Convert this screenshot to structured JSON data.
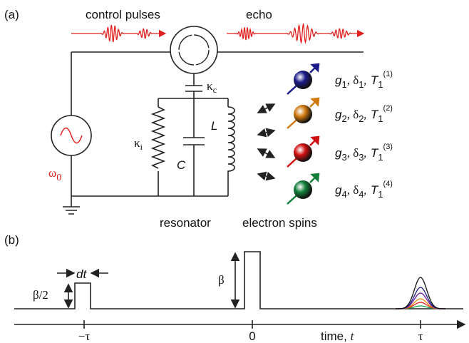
{
  "panel_a": {
    "label": "(a)",
    "control_pulses": "control pulses",
    "echo": "echo",
    "kappa_c": {
      "symbol": "κ",
      "sub": "c"
    },
    "kappa_i": {
      "symbol": "κ",
      "sub": "i"
    },
    "capacitor": "C",
    "inductor": "L",
    "omega": {
      "symbol": "ω",
      "sub": "0"
    },
    "resonator": "resonator",
    "electron_spins": "electron spins",
    "spins": [
      {
        "g": "g",
        "g_sub": "1",
        "delta": ", δ",
        "delta_sub": "1",
        "t": ", T",
        "t_sub": "1",
        "t_sup": "(1)",
        "color": "#1c1c8a"
      },
      {
        "g": "g",
        "g_sub": "2",
        "delta": ", δ",
        "delta_sub": "2",
        "t": ", T",
        "t_sub": "1",
        "t_sup": "(2)",
        "color": "#d07a10"
      },
      {
        "g": "g",
        "g_sub": "3",
        "delta": ", δ",
        "delta_sub": "3",
        "t": ", T",
        "t_sub": "1",
        "t_sup": "(3)",
        "color": "#d01010"
      },
      {
        "g": "g",
        "g_sub": "4",
        "delta": ", δ",
        "delta_sub": "4",
        "t": ", T",
        "t_sub": "1",
        "t_sup": "(4)",
        "color": "#12803a"
      }
    ]
  },
  "panel_b": {
    "label": "(b)",
    "dt": "dt",
    "half_beta": "β/2",
    "beta": "β",
    "minus_tau": "−τ",
    "zero": "0",
    "time": "time, ",
    "time_var": "t",
    "tau": "τ"
  }
}
